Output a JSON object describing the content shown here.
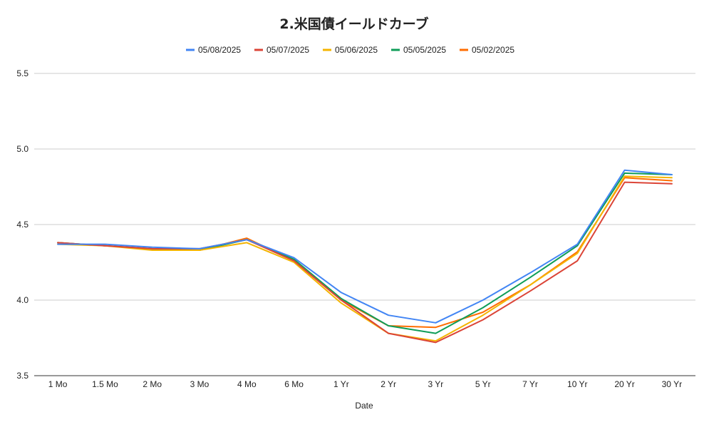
{
  "chart_data": {
    "type": "line",
    "title": "2.米国債イールドカーブ",
    "xlabel": "Date",
    "ylabel": "",
    "categories": [
      "1 Mo",
      "1.5 Mo",
      "2 Mo",
      "3 Mo",
      "4 Mo",
      "6 Mo",
      "1 Yr",
      "2 Yr",
      "3 Yr",
      "5 Yr",
      "7 Yr",
      "10 Yr",
      "20 Yr",
      "30 Yr"
    ],
    "ylim": [
      3.5,
      5.5
    ],
    "yticks": [
      "3.5",
      "4.0",
      "4.5",
      "5.0",
      "5.5"
    ],
    "grid": true,
    "legend_position": "top",
    "series": [
      {
        "name": "05/08/2025",
        "color": "#4285f4",
        "values": [
          4.37,
          4.37,
          4.35,
          4.34,
          4.4,
          4.28,
          4.05,
          3.9,
          3.85,
          4.0,
          4.18,
          4.37,
          4.86,
          4.83
        ]
      },
      {
        "name": "05/07/2025",
        "color": "#db4437",
        "values": [
          4.38,
          4.36,
          4.34,
          4.34,
          4.4,
          4.26,
          4.0,
          3.78,
          3.72,
          3.87,
          4.06,
          4.26,
          4.78,
          4.77
        ]
      },
      {
        "name": "05/06/2025",
        "color": "#f4b400",
        "values": [
          4.37,
          4.36,
          4.33,
          4.33,
          4.38,
          4.25,
          3.98,
          3.78,
          3.73,
          3.9,
          4.1,
          4.31,
          4.82,
          4.81
        ]
      },
      {
        "name": "05/05/2025",
        "color": "#0f9d58",
        "values": [
          4.38,
          4.36,
          4.34,
          4.33,
          4.4,
          4.27,
          4.01,
          3.83,
          3.78,
          3.95,
          4.15,
          4.36,
          4.84,
          4.83
        ]
      },
      {
        "name": "05/02/2025",
        "color": "#ff6d01",
        "values": [
          4.38,
          4.36,
          4.34,
          4.33,
          4.41,
          4.26,
          4.0,
          3.83,
          3.82,
          3.92,
          4.1,
          4.32,
          4.81,
          4.79
        ]
      }
    ]
  }
}
